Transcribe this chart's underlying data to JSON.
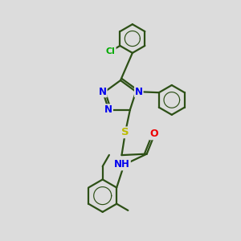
{
  "background_color": "#dcdcdc",
  "bond_color": "#2d5016",
  "bond_width": 1.6,
  "atom_colors": {
    "N": "#0000ee",
    "O": "#ee0000",
    "S": "#bbbb00",
    "Cl": "#00aa00",
    "C": "#2d5016"
  },
  "font_size_atom": 8.5,
  "fig_size": [
    3.0,
    3.0
  ],
  "dpi": 100
}
